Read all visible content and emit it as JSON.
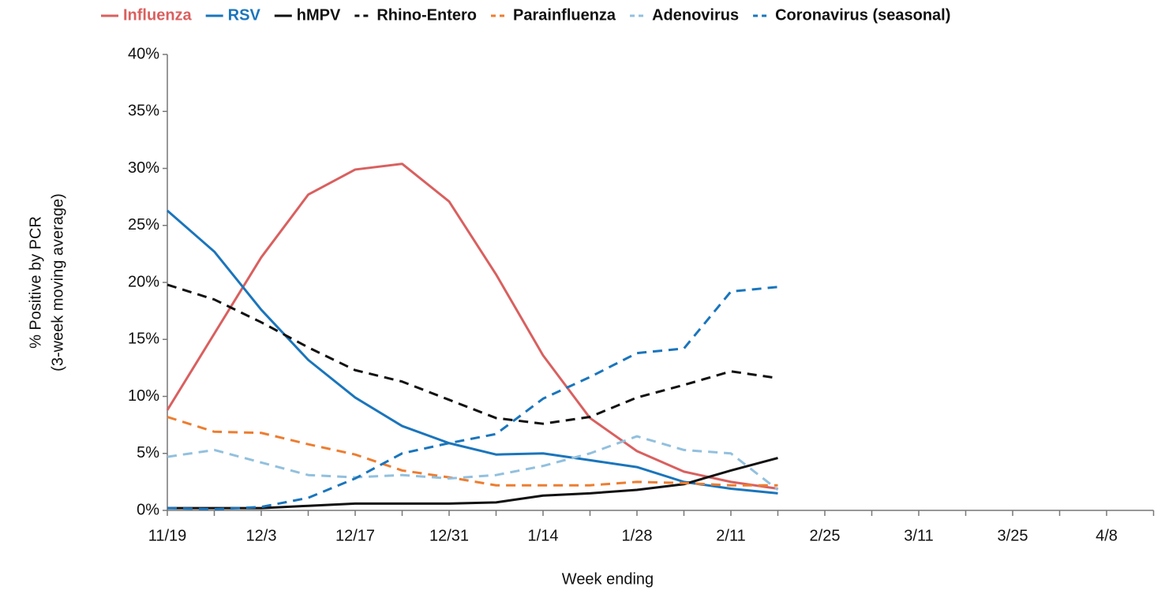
{
  "chart_data": {
    "type": "line",
    "ylabel": [
      "% Positive by PCR",
      "(3-week moving average)"
    ],
    "xlabel": "Week ending",
    "categories": [
      "11/19",
      null,
      "12/3",
      null,
      "12/17",
      null,
      "12/31",
      null,
      "1/14",
      null,
      "1/28",
      null,
      "2/11",
      null,
      "2/25",
      null,
      "3/11",
      null,
      "3/25",
      null,
      "4/8",
      null
    ],
    "ylim": [
      0,
      40
    ],
    "yticks": [
      {
        "value": 0,
        "label": "0%"
      },
      {
        "value": 5,
        "label": "5%"
      },
      {
        "value": 10,
        "label": "10%"
      },
      {
        "value": 15,
        "label": "15%"
      },
      {
        "value": 20,
        "label": "20%"
      },
      {
        "value": 25,
        "label": "25%"
      },
      {
        "value": 30,
        "label": "30%"
      },
      {
        "value": 35,
        "label": "35%"
      },
      {
        "value": 40,
        "label": "40%"
      }
    ],
    "legend": "top",
    "series": [
      {
        "name": "Influenza",
        "color": "#d9605f",
        "label_color": "#d9605f",
        "dashed": false,
        "values": [
          8.8,
          15.5,
          22.2,
          27.7,
          29.9,
          30.4,
          27.1,
          20.7,
          13.6,
          8.1,
          5.2,
          3.4,
          2.5,
          1.9,
          null,
          null,
          null,
          null,
          null,
          null,
          null,
          null
        ]
      },
      {
        "name": "RSV",
        "color": "#1a75bc",
        "label_color": "#1a75bc",
        "dashed": false,
        "values": [
          26.3,
          22.7,
          17.6,
          13.2,
          9.9,
          7.4,
          5.9,
          4.9,
          5.0,
          4.4,
          3.8,
          2.5,
          1.9,
          1.5,
          null,
          null,
          null,
          null,
          null,
          null,
          null,
          null
        ]
      },
      {
        "name": "hMPV",
        "color": "#111111",
        "label_color": "#111111",
        "dashed": false,
        "values": [
          0.2,
          0.2,
          0.2,
          0.4,
          0.6,
          0.6,
          0.6,
          0.7,
          1.3,
          1.5,
          1.8,
          2.3,
          3.5,
          4.6,
          null,
          null,
          null,
          null,
          null,
          null,
          null,
          null
        ]
      },
      {
        "name": "Rhino-Entero",
        "color": "#111111",
        "label_color": "#111111",
        "dashed": true,
        "values": [
          19.8,
          18.5,
          16.5,
          14.3,
          12.3,
          11.3,
          9.7,
          8.1,
          7.6,
          8.2,
          9.9,
          11.0,
          12.2,
          11.6,
          null,
          null,
          null,
          null,
          null,
          null,
          null,
          null
        ]
      },
      {
        "name": "Parainfluenza",
        "color": "#ed7d31",
        "label_color": "#111111",
        "dashed": true,
        "values": [
          8.2,
          6.9,
          6.8,
          5.8,
          4.9,
          3.5,
          2.9,
          2.2,
          2.2,
          2.2,
          2.5,
          2.4,
          2.2,
          2.2,
          null,
          null,
          null,
          null,
          null,
          null,
          null,
          null
        ]
      },
      {
        "name": "Adenovirus",
        "color": "#92c0de",
        "label_color": "#111111",
        "dashed": true,
        "values": [
          4.7,
          5.3,
          4.2,
          3.1,
          2.9,
          3.1,
          2.8,
          3.1,
          3.9,
          5.0,
          6.5,
          5.3,
          5.0,
          1.8,
          null,
          null,
          null,
          null,
          null,
          null,
          null,
          null
        ]
      },
      {
        "name": "Coronavirus (seasonal)",
        "color": "#1a75bc",
        "label_color": "#111111",
        "dashed": true,
        "values": [
          0.2,
          0.1,
          0.3,
          1.1,
          2.8,
          5.0,
          5.9,
          6.7,
          9.8,
          11.7,
          13.8,
          14.2,
          19.2,
          19.6,
          null,
          null,
          null,
          null,
          null,
          null,
          null,
          null
        ]
      }
    ]
  }
}
